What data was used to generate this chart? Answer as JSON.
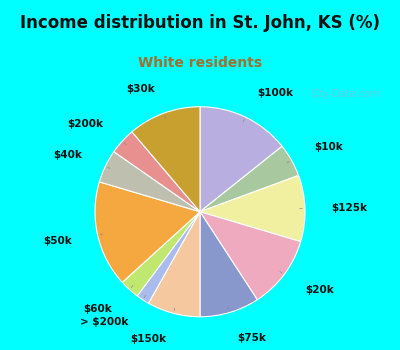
{
  "title": "Income distribution in St. John, KS (%)",
  "subtitle": "White residents",
  "labels": [
    "$100k",
    "$10k",
    "$125k",
    "$20k",
    "$75k",
    "$150k",
    "> $200k",
    "$60k",
    "$50k",
    "$40k",
    "$200k",
    "$30k"
  ],
  "values": [
    14,
    5,
    10,
    11,
    9,
    8,
    2,
    3,
    16,
    5,
    4,
    11
  ],
  "colors": [
    "#b8aee0",
    "#a8c8a0",
    "#f0f0a0",
    "#f0aabf",
    "#8898cc",
    "#f5c8a0",
    "#aabbee",
    "#c0e870",
    "#f5a840",
    "#bfbfb0",
    "#e89090",
    "#c8a030"
  ],
  "background_color": "#00ffff",
  "chart_bg_color": "#d8ede0",
  "title_color": "#111111",
  "subtitle_color": "#a07030",
  "title_fontsize": 12,
  "subtitle_fontsize": 10,
  "label_fontsize": 7.5,
  "watermark": "City-Data.com",
  "startangle": 90,
  "labeldistance": 1.25
}
